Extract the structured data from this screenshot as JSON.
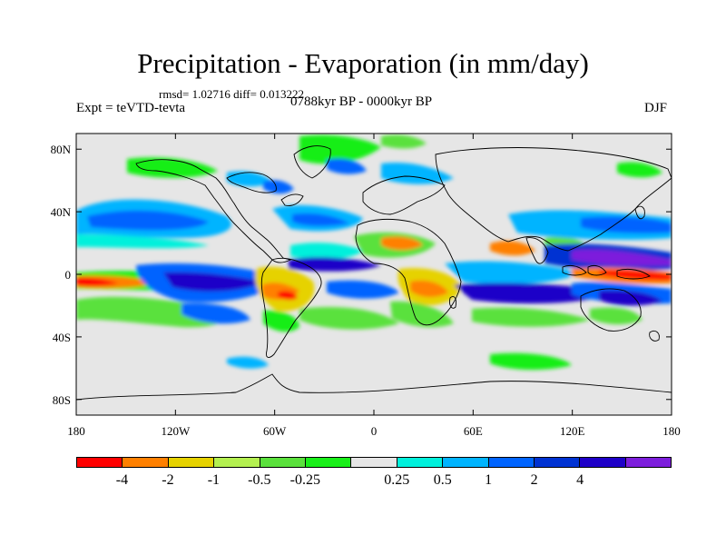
{
  "title": "Precipitation - Evaporation (in mm/day)",
  "stats": "rmsd= 1.02716 diff= 0.013222",
  "experiment": "Expt = teVTD-tevta",
  "period": "0788kyr BP - 0000kyr BP",
  "season": "DJF",
  "colors": {
    "background_field": "#e6e6e6",
    "coastline": "#000000"
  },
  "map": {
    "projection": "cylindrical equidistant",
    "lon_range": [
      -180,
      180
    ],
    "lat_range": [
      -90,
      90
    ],
    "x_ticks": [
      {
        "lon": -180,
        "label": "180"
      },
      {
        "lon": -120,
        "label": "120W"
      },
      {
        "lon": -60,
        "label": "60W"
      },
      {
        "lon": 0,
        "label": "0"
      },
      {
        "lon": 60,
        "label": "60E"
      },
      {
        "lon": 120,
        "label": "120E"
      },
      {
        "lon": 180,
        "label": "180"
      }
    ],
    "y_ticks": [
      {
        "lat": 80,
        "label": "80N"
      },
      {
        "lat": 40,
        "label": "40N"
      },
      {
        "lat": 0,
        "label": "0"
      },
      {
        "lat": -40,
        "label": "40S"
      },
      {
        "lat": -80,
        "label": "80S"
      }
    ]
  },
  "colorbar": {
    "colors": [
      "#ff0000",
      "#ff8000",
      "#e6d200",
      "#b4f050",
      "#5ae13c",
      "#19ee19",
      "#e6e6e6",
      "#00f0dc",
      "#00b4ff",
      "#0064ff",
      "#0032d2",
      "#1e00c8",
      "#7d1edc"
    ],
    "levels": [
      "-4",
      "-2",
      "-1",
      "-0.5",
      "-0.25",
      "0.25",
      "0.5",
      "1",
      "2",
      "4"
    ],
    "level_boundary_index": [
      1,
      2,
      3,
      4,
      5,
      7,
      8,
      9,
      10,
      11
    ]
  }
}
